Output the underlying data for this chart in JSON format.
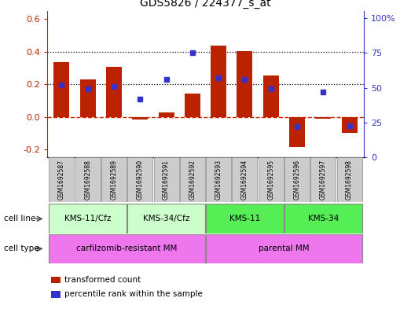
{
  "title": "GDS5826 / 224377_s_at",
  "samples": [
    "GSM1692587",
    "GSM1692588",
    "GSM1692589",
    "GSM1692590",
    "GSM1692591",
    "GSM1692592",
    "GSM1692593",
    "GSM1692594",
    "GSM1692595",
    "GSM1692596",
    "GSM1692597",
    "GSM1692598"
  ],
  "transformed_count": [
    0.335,
    0.23,
    0.305,
    -0.015,
    0.025,
    0.145,
    0.435,
    0.405,
    0.255,
    -0.185,
    -0.012,
    -0.1
  ],
  "percentile_rank": [
    52,
    49,
    51,
    42,
    56,
    75,
    57,
    56,
    49,
    22,
    47,
    23
  ],
  "ylim_left": [
    -0.25,
    0.65
  ],
  "ylim_right": [
    0,
    105
  ],
  "yticks_left": [
    -0.2,
    0.0,
    0.2,
    0.4,
    0.6
  ],
  "yticks_right": [
    0,
    25,
    50,
    75,
    100
  ],
  "hlines_dotted": [
    0.2,
    0.4
  ],
  "hline_zero_dashed": 0.0,
  "bar_color": "#BB2200",
  "dot_color": "#3333CC",
  "cell_line_groups": [
    {
      "label": "KMS-11/Cfz",
      "start": 0,
      "end": 2,
      "color": "#CCFFCC"
    },
    {
      "label": "KMS-34/Cfz",
      "start": 3,
      "end": 5,
      "color": "#CCFFCC"
    },
    {
      "label": "KMS-11",
      "start": 6,
      "end": 8,
      "color": "#55EE55"
    },
    {
      "label": "KMS-34",
      "start": 9,
      "end": 11,
      "color": "#55EE55"
    }
  ],
  "cell_type_groups": [
    {
      "label": "carfilzomib-resistant MM",
      "start": 0,
      "end": 5,
      "color": "#EE77EE"
    },
    {
      "label": "parental MM",
      "start": 6,
      "end": 11,
      "color": "#EE77EE"
    }
  ],
  "cell_line_label": "cell line",
  "cell_type_label": "cell type",
  "legend_bar_label": "transformed count",
  "legend_dot_label": "percentile rank within the sample",
  "dashed_line_color": "#CC2200",
  "left_axis_color": "#BB2200",
  "right_axis_color": "#3333CC",
  "sample_box_color": "#CCCCCC",
  "sample_box_edge": "#888888"
}
